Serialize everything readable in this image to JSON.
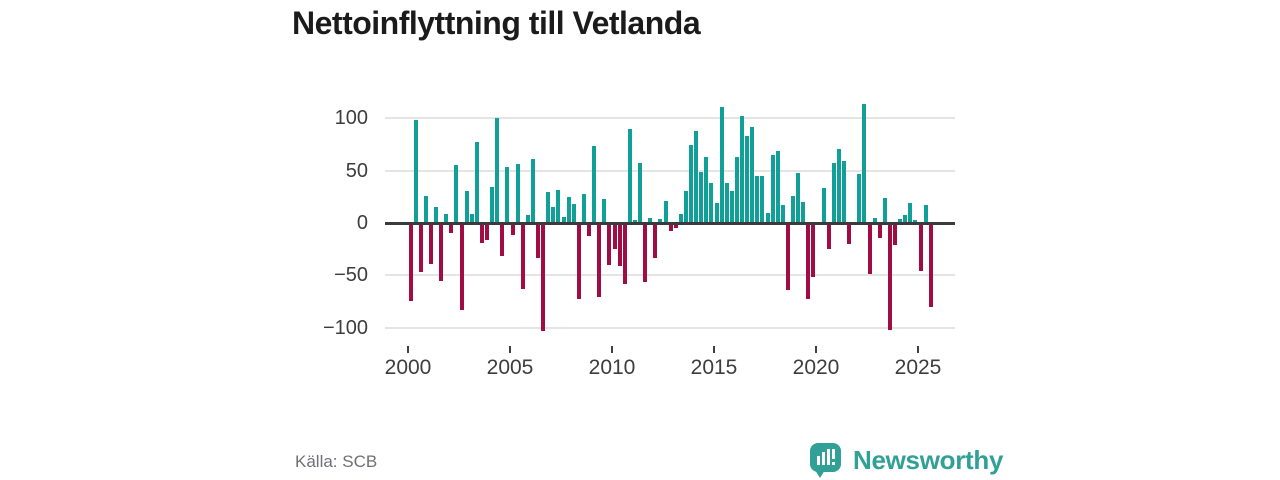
{
  "title": "Nettoinflyttning till Vetlanda",
  "source": "Källa: SCB",
  "logo": {
    "text": "Newsworthy",
    "icon": "newsworthy-speech-bubble-bar-chart"
  },
  "chart_data": {
    "type": "bar",
    "title": "Nettoinflyttning till Vetlanda",
    "x_unit": "quarter",
    "start": "2000-Q1",
    "end": "2025-Q3",
    "ylim": [
      -110,
      118
    ],
    "grid": "horizontal",
    "y_gridlines": [
      100,
      50,
      0,
      -50,
      -100
    ],
    "y_tick_labels": [
      "100",
      "50",
      "0",
      "−50",
      "−100"
    ],
    "x_tick_years": [
      2000,
      2005,
      2010,
      2015,
      2020,
      2025
    ],
    "colors": {
      "positive": "#10A098",
      "negative": "#A10C45"
    },
    "values_by_year": {
      "2000": [
        -75,
        98,
        -47,
        26
      ],
      "2001": [
        -39,
        15,
        -55,
        9
      ],
      "2002": [
        -10,
        55,
        -83,
        31
      ],
      "2003": [
        9,
        77,
        -19,
        -16
      ],
      "2004": [
        34,
        100,
        -32,
        54
      ],
      "2005": [
        -11,
        56,
        -63,
        8
      ],
      "2006": [
        61,
        -33,
        -103,
        30
      ],
      "2007": [
        15,
        32,
        6,
        25
      ],
      "2008": [
        18,
        -73,
        28,
        -12
      ],
      "2009": [
        74,
        -71,
        23,
        -40
      ],
      "2010": [
        -25,
        -41,
        -58,
        90
      ],
      "2011": [
        3,
        57,
        -56,
        5
      ],
      "2012": [
        -33,
        4,
        21,
        -8
      ],
      "2013": [
        -5,
        9,
        31,
        75
      ],
      "2014": [
        88,
        49,
        63,
        38
      ],
      "2015": [
        19,
        111,
        38,
        31
      ],
      "2016": [
        63,
        102,
        83,
        92
      ],
      "2017": [
        45,
        45,
        10,
        65
      ],
      "2018": [
        69,
        17,
        -64,
        26
      ],
      "2019": [
        48,
        20,
        -73,
        -52
      ],
      "2020": [
        0,
        33,
        -25,
        57
      ],
      "2021": [
        71,
        59,
        -20,
        1
      ],
      "2022": [
        47,
        114,
        -49,
        5
      ],
      "2023": [
        -14,
        24,
        -102,
        -21
      ],
      "2024": [
        4,
        8,
        19,
        3
      ],
      "2025": [
        -46,
        17,
        -80
      ]
    }
  }
}
